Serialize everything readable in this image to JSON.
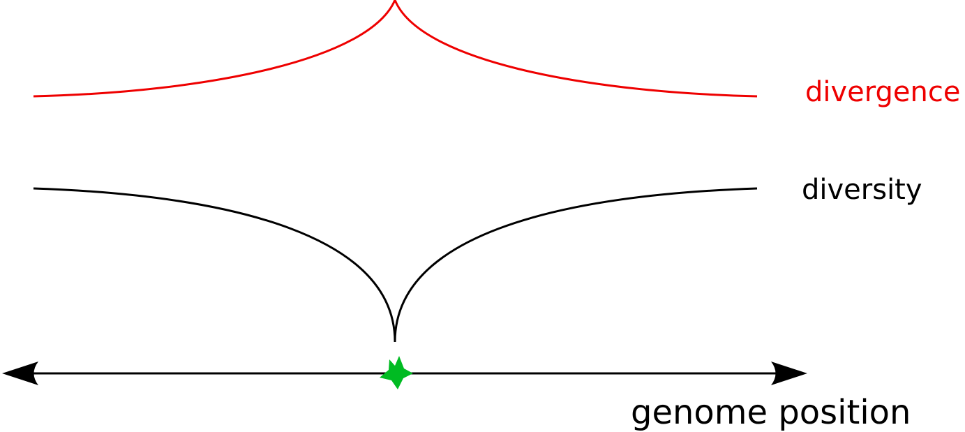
{
  "labels": {
    "divergence": "divergence",
    "diversity": "diversity",
    "axis": "genome position"
  },
  "colors": {
    "divergence": "#ee0000",
    "diversity": "#000000",
    "axis": "#000000",
    "marker": "#00bb22"
  },
  "icons": {
    "marker": "star-icon",
    "axis_ends": "arrowhead-icon"
  }
}
